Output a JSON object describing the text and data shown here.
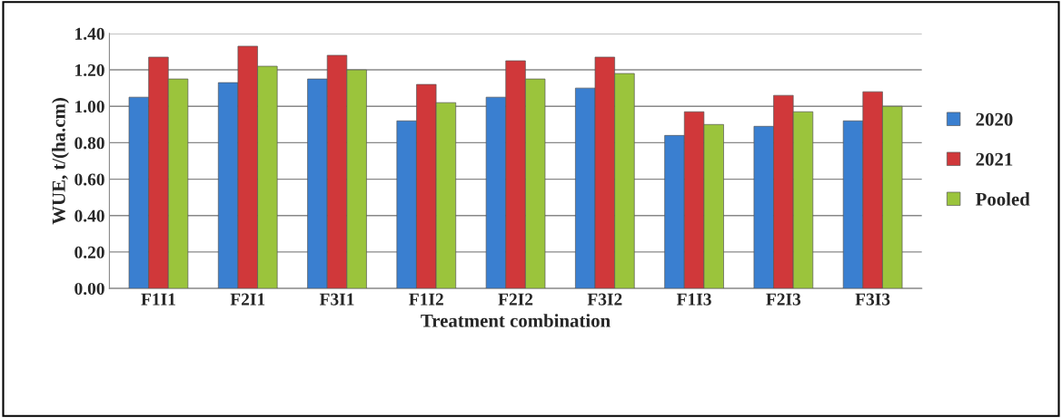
{
  "chart_data": {
    "type": "bar",
    "xlabel": "Treatment combination",
    "ylabel": "WUE, t/(ha.cm)",
    "categories": [
      "F1I1",
      "F2I1",
      "F3I1",
      "F1I2",
      "F2I2",
      "F3I2",
      "F1I3",
      "F2I3",
      "F3I3"
    ],
    "series": [
      {
        "name": "2020",
        "color": "#3a7fd0",
        "values": [
          1.05,
          1.13,
          1.15,
          0.92,
          1.05,
          1.1,
          0.84,
          0.89,
          0.92
        ]
      },
      {
        "name": "2021",
        "color": "#d0383a",
        "values": [
          1.27,
          1.33,
          1.28,
          1.12,
          1.25,
          1.27,
          0.97,
          1.06,
          1.08
        ]
      },
      {
        "name": "Pooled",
        "color": "#9bc43c",
        "values": [
          1.15,
          1.22,
          1.2,
          1.02,
          1.15,
          1.18,
          0.9,
          0.97,
          1.0
        ]
      }
    ],
    "ylim": [
      0,
      1.4
    ],
    "yticks": [
      {
        "value": 0,
        "label": "0.00"
      },
      {
        "value": 0.2,
        "label": "0.20"
      },
      {
        "value": 0.4,
        "label": "0.40"
      },
      {
        "value": 0.6,
        "label": "0.60"
      },
      {
        "value": 0.8,
        "label": "0.80"
      },
      {
        "value": 1.0,
        "label": "1.00"
      },
      {
        "value": 1.2,
        "label": "1.20"
      },
      {
        "value": 1.4,
        "label": "1.40"
      }
    ],
    "grid": "y",
    "legend": "right"
  }
}
